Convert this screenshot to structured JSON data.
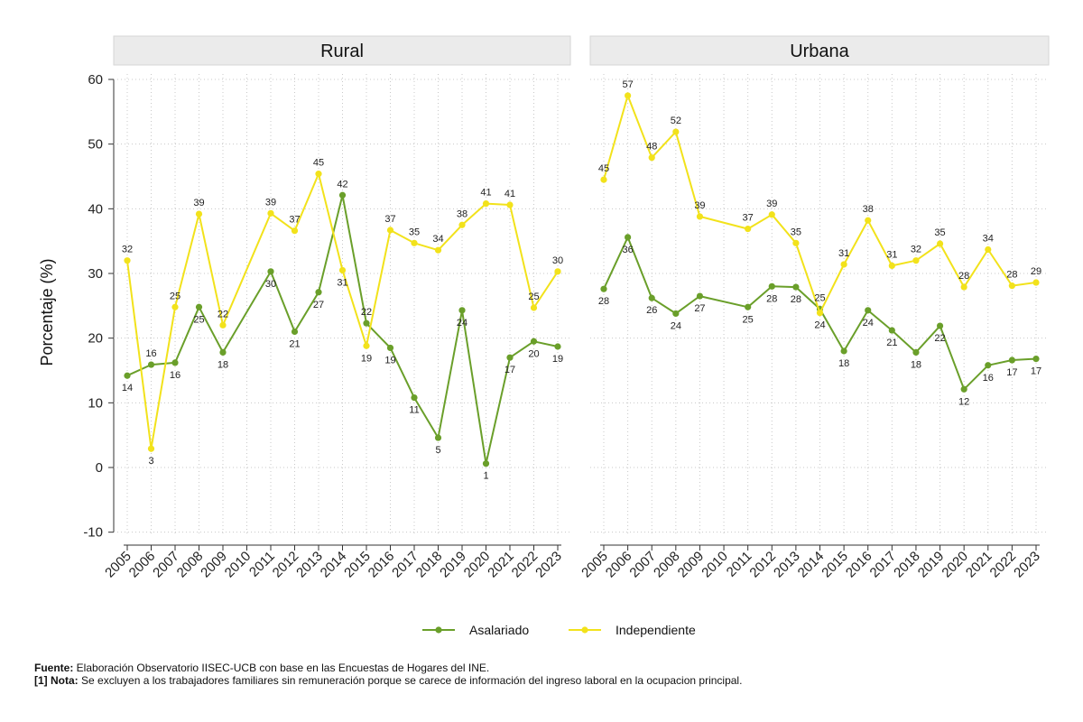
{
  "chart_data": {
    "type": "line",
    "ylabel": "Porcentaje (%)",
    "ylim": [
      -10,
      60
    ],
    "yticks": [
      "60",
      "50",
      "40",
      "30",
      "20",
      "10",
      "0",
      "-10"
    ],
    "categories": [
      "2005",
      "2006",
      "2007",
      "2008",
      "2009",
      "2010",
      "2011",
      "2012",
      "2013",
      "2014",
      "2015",
      "2016",
      "2017",
      "2018",
      "2019",
      "2020",
      "2021",
      "2022",
      "2023"
    ],
    "panels": [
      {
        "title": "Rural",
        "series": [
          {
            "name": "Asalariado",
            "values": [
              14.2,
              15.9,
              16.2,
              24.8,
              17.8,
              null,
              30.3,
              21.0,
              27.1,
              42.1,
              22.3,
              18.5,
              10.8,
              4.6,
              24.3,
              0.6,
              17.0,
              19.5,
              18.7
            ],
            "labels": [
              "14",
              "16",
              "16",
              "25",
              "18",
              null,
              "30",
              "21",
              "27",
              "42",
              "22",
              "19",
              "11",
              "5",
              "24",
              "1",
              "17",
              "20",
              "19"
            ]
          },
          {
            "name": "Independiente",
            "values": [
              32.0,
              2.9,
              24.8,
              39.2,
              22.0,
              null,
              39.3,
              36.6,
              45.4,
              30.5,
              18.8,
              36.7,
              34.7,
              33.6,
              37.5,
              40.8,
              40.6,
              24.7,
              30.3
            ],
            "labels": [
              "32",
              "3",
              "25",
              "39",
              "22",
              null,
              "39",
              "37",
              "45",
              "31",
              "19",
              "37",
              "35",
              "34",
              "38",
              "41",
              "41",
              "25",
              "30"
            ]
          }
        ]
      },
      {
        "title": "Urbana",
        "series": [
          {
            "name": "Asalariado",
            "values": [
              27.6,
              35.6,
              26.2,
              23.8,
              26.5,
              null,
              24.8,
              28.0,
              27.9,
              24.5,
              18.0,
              24.3,
              21.2,
              17.8,
              21.9,
              12.1,
              15.8,
              16.6,
              16.8
            ],
            "labels": [
              "28",
              "36",
              "26",
              "24",
              "27",
              null,
              "25",
              "28",
              "28",
              "25",
              "18",
              "24",
              "21",
              "18",
              "22",
              "12",
              "16",
              "17",
              "17"
            ]
          },
          {
            "name": "Independiente",
            "values": [
              44.5,
              57.5,
              47.9,
              51.9,
              38.8,
              null,
              36.9,
              39.1,
              34.7,
              23.9,
              31.4,
              38.2,
              31.2,
              32.0,
              34.6,
              27.9,
              33.7,
              28.1,
              28.6
            ],
            "labels": [
              "45",
              "57",
              "48",
              "52",
              "39",
              null,
              "37",
              "39",
              "35",
              "24",
              "31",
              "38",
              "31",
              "32",
              "35",
              "28",
              "34",
              "28",
              "29"
            ]
          }
        ]
      }
    ],
    "legend": [
      {
        "name": "Asalariado",
        "color": "#6a9f2a"
      },
      {
        "name": "Independiente",
        "color": "#f2e21b"
      }
    ]
  },
  "notes": {
    "source_label": "Fuente:",
    "source_text": " Elaboración Observatorio IISEC-UCB con base en las Encuestas de Hogares del INE.",
    "note_label": "[1] Nota:",
    "note_text": " Se excluyen a los trabajadores familiares sin remuneración porque se carece de información del ingreso laboral en la ocupacion principal."
  }
}
